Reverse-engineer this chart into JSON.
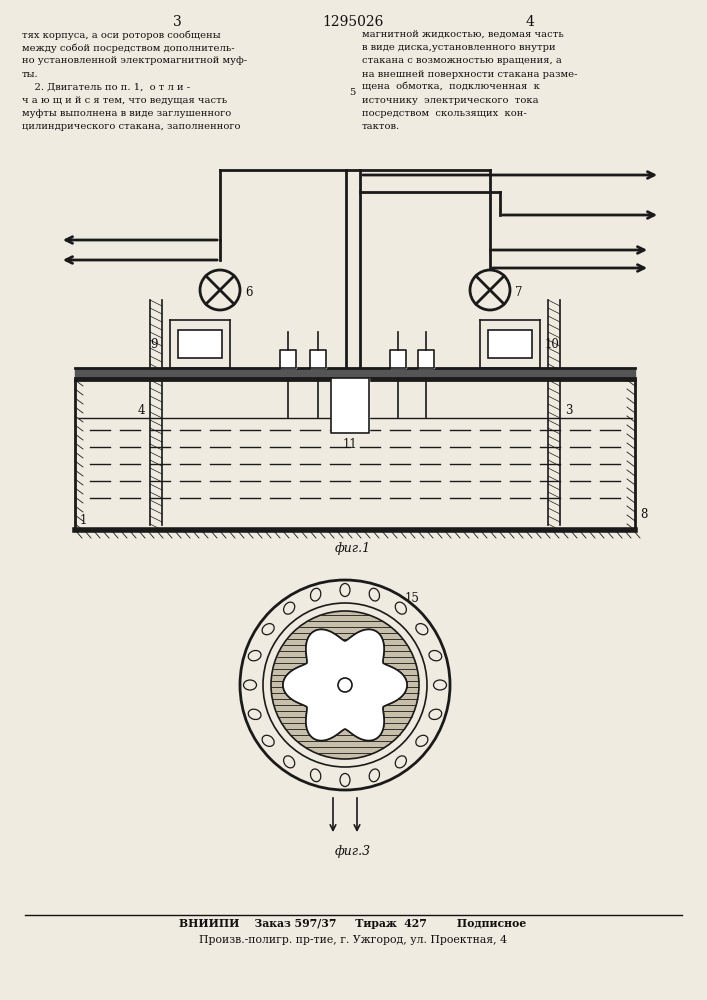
{
  "page_number_left": "3",
  "page_number_center": "1295026",
  "page_number_right": "4",
  "text_left_lines": [
    "тях корпуса, а оси роторов сообщены",
    "между собой посредством дополнитель-",
    "но установленной электромагнитной муф-",
    "ты.",
    "    2. Двигатель по п. 1,  о т л и -",
    "ч а ю щ и й с я тем, что ведущая часть",
    "муфты выполнена в виде заглушенного",
    "цилиндрического стакана, заполненного"
  ],
  "text_right_lines": [
    "магнитной жидкостью, ведомая часть",
    "в виде диска,установленного внутри",
    "стакана с возможностью вращения, а",
    "на внешней поверхности стакана разме-",
    "щена  обмотка,  подключенная  к",
    "источнику  электрического  тока",
    "посредством  скользящих  кон-",
    "тактов."
  ],
  "fig1_label": "фиг.1",
  "fig3_label": "фиг.3",
  "bottom_line1": "ВНИИПИ    Заказ 597/37     Тираж  427        Подписное",
  "bottom_line2": "Произв.-полигр. пр-тие, г. Ужгород, ул. Проектная, 4",
  "bg_color": "#f0ebe0",
  "line_color": "#1a1a1a",
  "text_color": "#111111"
}
